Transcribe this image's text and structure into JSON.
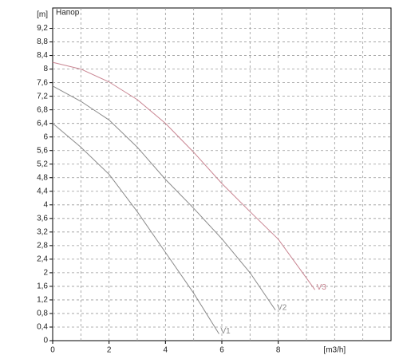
{
  "chart_data": {
    "type": "line",
    "title": "Напор",
    "y_label": "[m]",
    "x_label": "[m3/h]",
    "xlim": [
      0,
      12
    ],
    "ylim": [
      0,
      9.8
    ],
    "xticks": [
      0,
      2,
      4,
      6,
      8
    ],
    "x_label_at": 10,
    "x_grid_step": 1,
    "yticks": [
      0,
      {
        "value": 0.4,
        "label": "0,4"
      },
      {
        "value": 0.8,
        "label": "0,8"
      },
      {
        "value": 1.2,
        "label": "1,2"
      },
      {
        "value": 1.6,
        "label": "1,6"
      },
      2,
      {
        "value": 2.4,
        "label": "2,4"
      },
      {
        "value": 2.8,
        "label": "2,8"
      },
      {
        "value": 3.2,
        "label": "3,2"
      },
      {
        "value": 3.6,
        "label": "3,6"
      },
      4,
      {
        "value": 4.4,
        "label": "4,4"
      },
      {
        "value": 4.8,
        "label": "4,8"
      },
      {
        "value": 5.2,
        "label": "5,2"
      },
      {
        "value": 5.6,
        "label": "5,6"
      },
      6,
      {
        "value": 6.4,
        "label": "6,4"
      },
      {
        "value": 6.8,
        "label": "6,8"
      },
      {
        "value": 7.2,
        "label": "7,2"
      },
      {
        "value": 7.6,
        "label": "7,6"
      },
      8,
      {
        "value": 8.4,
        "label": "8,4"
      },
      {
        "value": 8.8,
        "label": "8,8"
      },
      {
        "value": 9.2,
        "label": "9,2"
      }
    ],
    "y_label_at": 9.6,
    "grid": true,
    "series": [
      {
        "name": "V1",
        "color": "#8a8a8a",
        "x": [
          0,
          1,
          2,
          3,
          4,
          5,
          5.9
        ],
        "values": [
          6.4,
          5.7,
          4.9,
          3.8,
          2.6,
          1.4,
          0.2
        ]
      },
      {
        "name": "V2",
        "color": "#8a8a8a",
        "x": [
          0,
          1,
          2,
          3,
          4,
          5,
          6,
          7,
          7.9
        ],
        "values": [
          7.5,
          7.05,
          6.5,
          5.7,
          4.75,
          3.9,
          3.0,
          2.0,
          0.9
        ]
      },
      {
        "name": "V3",
        "color": "#c98592",
        "x": [
          0,
          1,
          2,
          3,
          4,
          5,
          6,
          7,
          8,
          9.3
        ],
        "values": [
          8.2,
          8.0,
          7.62,
          7.1,
          6.4,
          5.55,
          4.63,
          3.8,
          2.99,
          1.5
        ]
      }
    ]
  }
}
